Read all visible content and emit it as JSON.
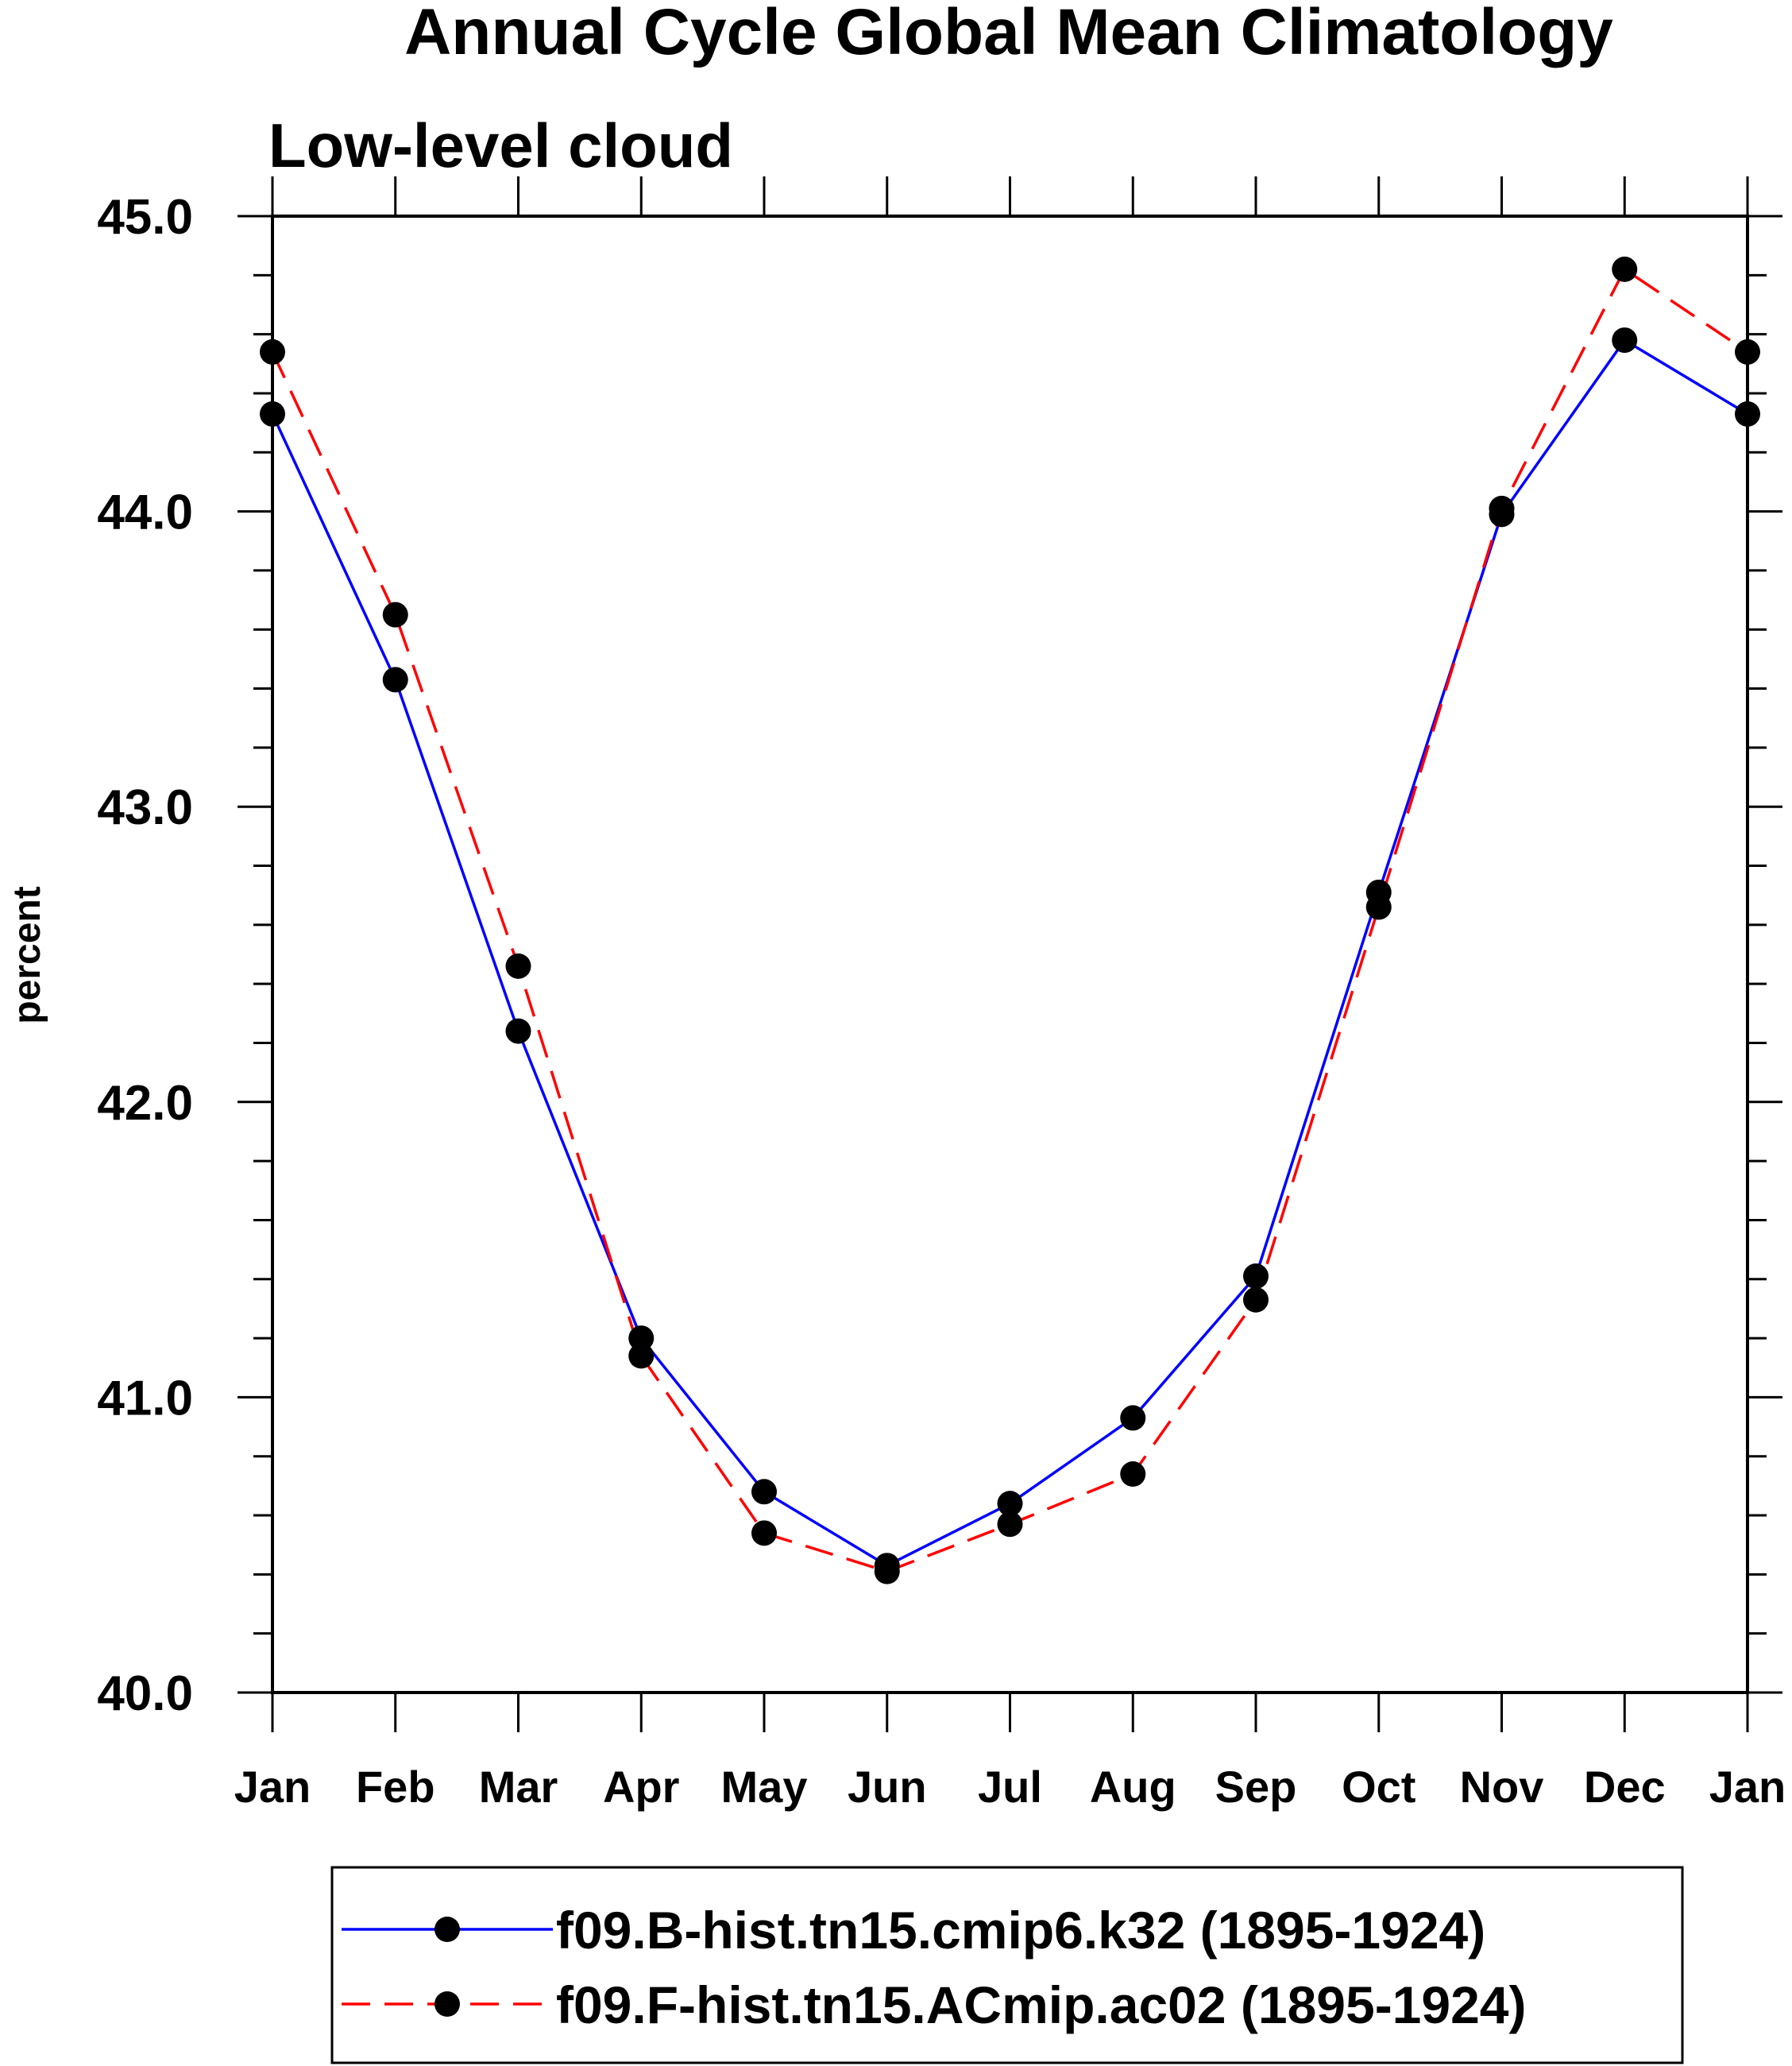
{
  "chart_data": {
    "type": "line",
    "title": "Annual Cycle Global Mean Climatology",
    "subtitle": "Low-level cloud",
    "xlabel": "",
    "ylabel": "percent",
    "ylim": [
      40.0,
      45.0
    ],
    "yticks": [
      "40.0",
      "41.0",
      "42.0",
      "43.0",
      "44.0",
      "45.0"
    ],
    "categories": [
      "Jan",
      "Feb",
      "Mar",
      "Apr",
      "May",
      "Jun",
      "Jul",
      "Aug",
      "Sep",
      "Oct",
      "Nov",
      "Dec",
      "Jan"
    ],
    "grid": false,
    "legend_position": "bottom",
    "series": [
      {
        "name": "f09.B-hist.tn15.cmip6.k32 (1895-1924)",
        "color": "#0000ff",
        "dash": "solid",
        "marker": "filled-circle",
        "values": [
          44.33,
          43.43,
          42.24,
          41.2,
          40.68,
          40.43,
          40.64,
          40.93,
          41.41,
          42.71,
          43.99,
          44.58,
          44.33
        ]
      },
      {
        "name": "f09.F-hist.tn15.ACmip.ac02 (1895-1924)",
        "color": "#ff0000",
        "dash": "dashed",
        "marker": "filled-circle",
        "values": [
          44.54,
          43.65,
          42.46,
          41.14,
          40.54,
          40.41,
          40.57,
          40.74,
          41.33,
          42.66,
          44.01,
          44.82,
          44.54
        ]
      }
    ]
  }
}
